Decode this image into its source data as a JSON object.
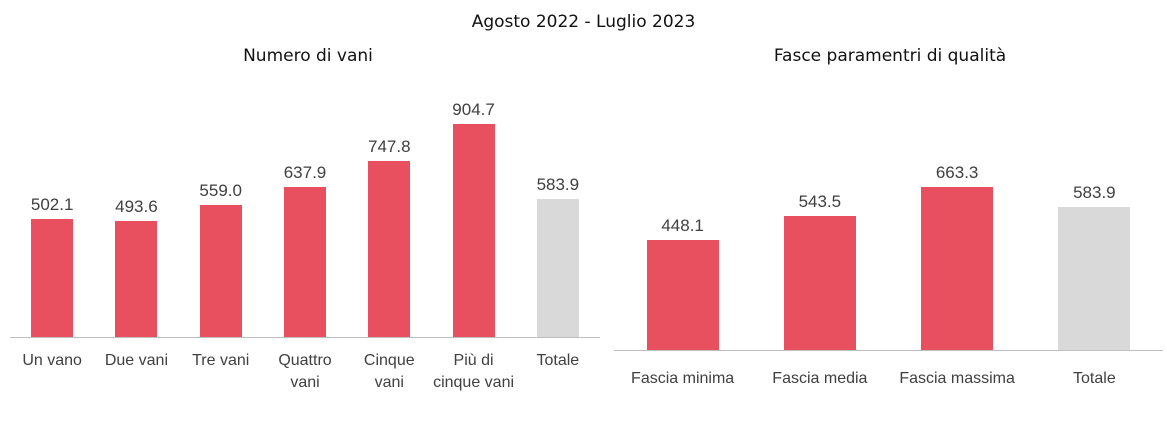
{
  "title": "Agosto 2022 - Luglio 2023",
  "chart_data": [
    {
      "type": "bar",
      "title": "Numero di vani",
      "categories": [
        "Un vano",
        "Due vani",
        "Tre vani",
        "Quattro vani",
        "Cinque vani",
        "Più di cinque vani",
        "Totale"
      ],
      "values": [
        502.1,
        493.6,
        559.0,
        637.9,
        747.8,
        904.7,
        583.9
      ],
      "value_labels": [
        "502.1",
        "493.6",
        "559.0",
        "637.9",
        "747.8",
        "904.7",
        "583.9"
      ],
      "colors": [
        "#e8505f",
        "#e8505f",
        "#e8505f",
        "#e8505f",
        "#e8505f",
        "#e8505f",
        "#d9d9d9"
      ]
    },
    {
      "type": "bar",
      "title": "Fasce paramentri di qualità",
      "categories": [
        "Fascia minima",
        "Fascia media",
        "Fascia massima",
        "Totale"
      ],
      "values": [
        448.1,
        543.5,
        663.3,
        583.9
      ],
      "value_labels": [
        "448.1",
        "543.5",
        "663.3",
        "583.9"
      ],
      "colors": [
        "#e8505f",
        "#e8505f",
        "#e8505f",
        "#d9d9d9"
      ]
    }
  ]
}
